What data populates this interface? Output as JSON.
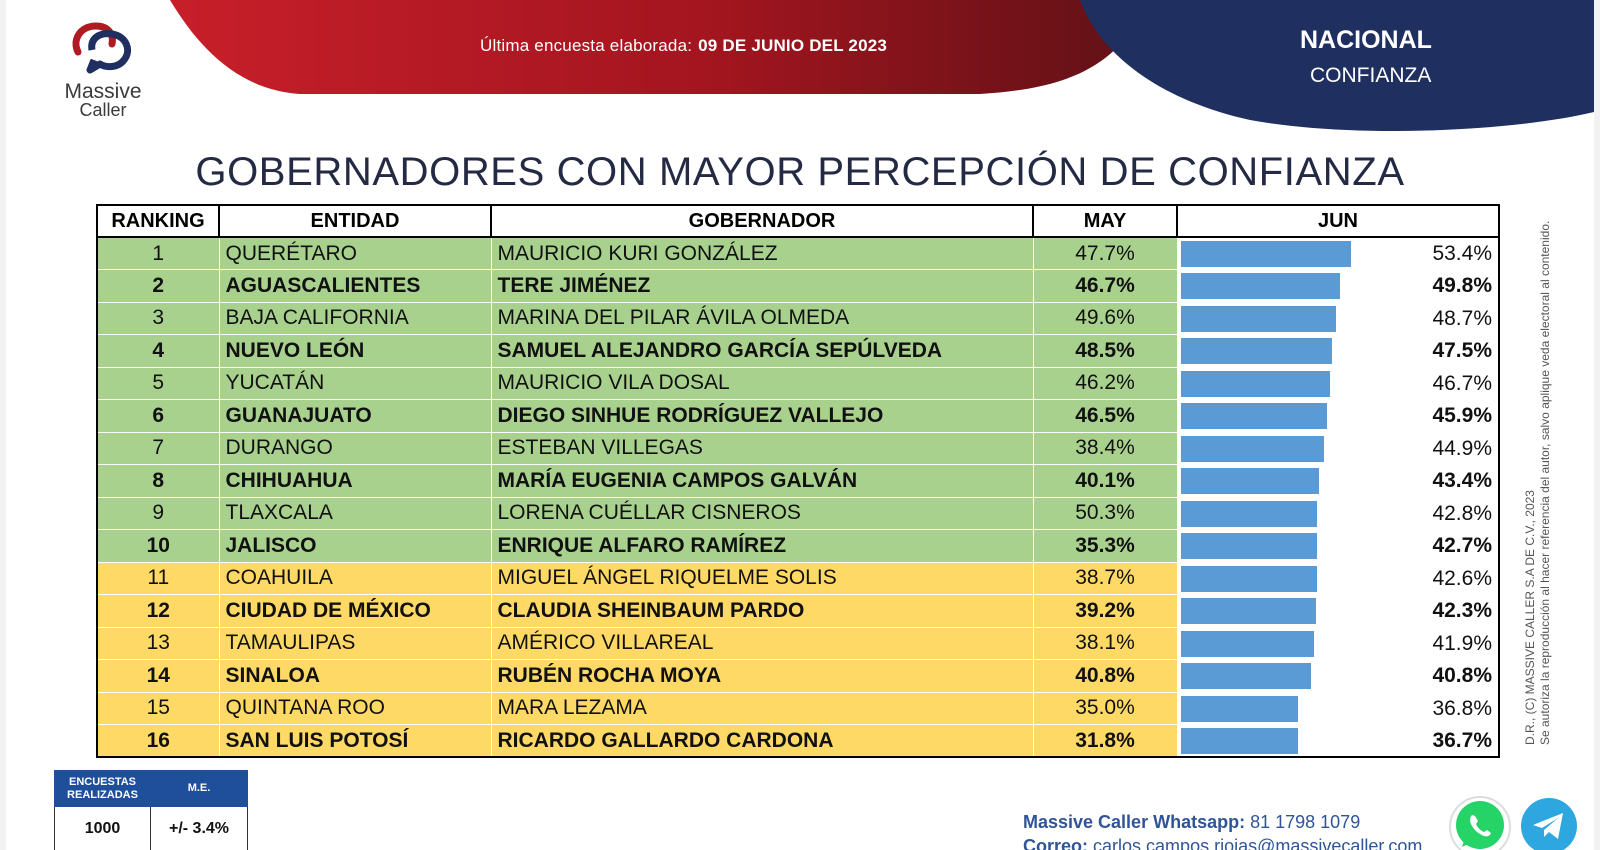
{
  "header": {
    "survey_label": "Última encuesta elaborada:",
    "survey_date": "09 DE JUNIO DEL 2023",
    "scope": "NACIONAL",
    "category": "CONFIANZA"
  },
  "logo": {
    "line1": "Massive",
    "line2": "Caller"
  },
  "title": "GOBERNADORES CON MAYOR PERCEPCIÓN DE CONFIANZA",
  "table": {
    "columns": [
      "RANKING",
      "ENTIDAD",
      "GOBERNADOR",
      "MAY",
      "JUN"
    ],
    "rows": [
      {
        "rank": "1",
        "entidad": "QUERÉTARO",
        "gobernador": "MAURICIO KURI GONZÁLEZ",
        "may": "47.7%",
        "jun": "53.4%",
        "jun_value": 53.4,
        "group": "green",
        "bold": false
      },
      {
        "rank": "2",
        "entidad": "AGUASCALIENTES",
        "gobernador": "TERE JIMÉNEZ",
        "may": "46.7%",
        "jun": "49.8%",
        "jun_value": 49.8,
        "group": "green",
        "bold": true
      },
      {
        "rank": "3",
        "entidad": "BAJA CALIFORNIA",
        "gobernador": "MARINA DEL PILAR ÁVILA OLMEDA",
        "may": "49.6%",
        "jun": "48.7%",
        "jun_value": 48.7,
        "group": "green",
        "bold": false
      },
      {
        "rank": "4",
        "entidad": "NUEVO LEÓN",
        "gobernador": "SAMUEL ALEJANDRO GARCÍA SEPÚLVEDA",
        "may": "48.5%",
        "jun": "47.5%",
        "jun_value": 47.5,
        "group": "green",
        "bold": true
      },
      {
        "rank": "5",
        "entidad": "YUCATÁN",
        "gobernador": "MAURICIO VILA DOSAL",
        "may": "46.2%",
        "jun": "46.7%",
        "jun_value": 46.7,
        "group": "green",
        "bold": false
      },
      {
        "rank": "6",
        "entidad": "GUANAJUATO",
        "gobernador": "DIEGO SINHUE RODRÍGUEZ VALLEJO",
        "may": "46.5%",
        "jun": "45.9%",
        "jun_value": 45.9,
        "group": "green",
        "bold": true
      },
      {
        "rank": "7",
        "entidad": "DURANGO",
        "gobernador": "ESTEBAN VILLEGAS",
        "may": "38.4%",
        "jun": "44.9%",
        "jun_value": 44.9,
        "group": "green",
        "bold": false
      },
      {
        "rank": "8",
        "entidad": "CHIHUAHUA",
        "gobernador": "MARÍA EUGENIA CAMPOS GALVÁN",
        "may": "40.1%",
        "jun": "43.4%",
        "jun_value": 43.4,
        "group": "green",
        "bold": true
      },
      {
        "rank": "9",
        "entidad": "TLAXCALA",
        "gobernador": "LORENA CUÉLLAR CISNEROS",
        "may": "50.3%",
        "jun": "42.8%",
        "jun_value": 42.8,
        "group": "green",
        "bold": false
      },
      {
        "rank": "10",
        "entidad": "JALISCO",
        "gobernador": "ENRIQUE ALFARO RAMÍREZ",
        "may": "35.3%",
        "jun": "42.7%",
        "jun_value": 42.7,
        "group": "green",
        "bold": true
      },
      {
        "rank": "11",
        "entidad": "COAHUILA",
        "gobernador": "MIGUEL ÁNGEL RIQUELME SOLIS",
        "may": "38.7%",
        "jun": "42.6%",
        "jun_value": 42.6,
        "group": "yellow",
        "bold": false
      },
      {
        "rank": "12",
        "entidad": "CIUDAD DE MÉXICO",
        "gobernador": "CLAUDIA SHEINBAUM PARDO",
        "may": "39.2%",
        "jun": "42.3%",
        "jun_value": 42.3,
        "group": "yellow",
        "bold": true
      },
      {
        "rank": "13",
        "entidad": "TAMAULIPAS",
        "gobernador": "AMÉRICO VILLAREAL",
        "may": "38.1%",
        "jun": "41.9%",
        "jun_value": 41.9,
        "group": "yellow",
        "bold": false
      },
      {
        "rank": "14",
        "entidad": "SINALOA",
        "gobernador": "RUBÉN ROCHA MOYA",
        "may": "40.8%",
        "jun": "40.8%",
        "jun_value": 40.8,
        "group": "yellow",
        "bold": true
      },
      {
        "rank": "15",
        "entidad": "QUINTANA ROO",
        "gobernador": "MARA LEZAMA",
        "may": "35.0%",
        "jun": "36.8%",
        "jun_value": 36.8,
        "group": "yellow",
        "bold": false
      },
      {
        "rank": "16",
        "entidad": "SAN LUIS POTOSÍ",
        "gobernador": "RICARDO GALLARDO CARDONA",
        "may": "31.8%",
        "jun": "36.7%",
        "jun_value": 36.7,
        "group": "yellow",
        "bold": true
      }
    ]
  },
  "survey_box": {
    "col1_header": "ENCUESTAS REALIZADAS",
    "col2_header": "M.E.",
    "col1_value": "1000",
    "col2_value": "+/- 3.4%"
  },
  "copyright": {
    "line1": "D.R., (C) MASSIVE CALLER S.A DE C.V., 2023",
    "line2": "Se autoriza la reproducción al hacer referencia del autor, salvo aplique veda electoral al contenido."
  },
  "contact": {
    "whatsapp_label": "Massive Caller Whatsapp:",
    "whatsapp_number": "81 1798 1079",
    "email_label": "Correo:",
    "email": "carlos.campos.riojas@massivecaller.com"
  },
  "colors": {
    "green_row": "#a9d18e",
    "yellow_row": "#ffd966",
    "bar": "#5b9bd5",
    "header_red": "#b01a22",
    "header_navy": "#1f2f60"
  },
  "icons": [
    "massive-caller-logo",
    "whatsapp-icon",
    "telegram-icon"
  ]
}
